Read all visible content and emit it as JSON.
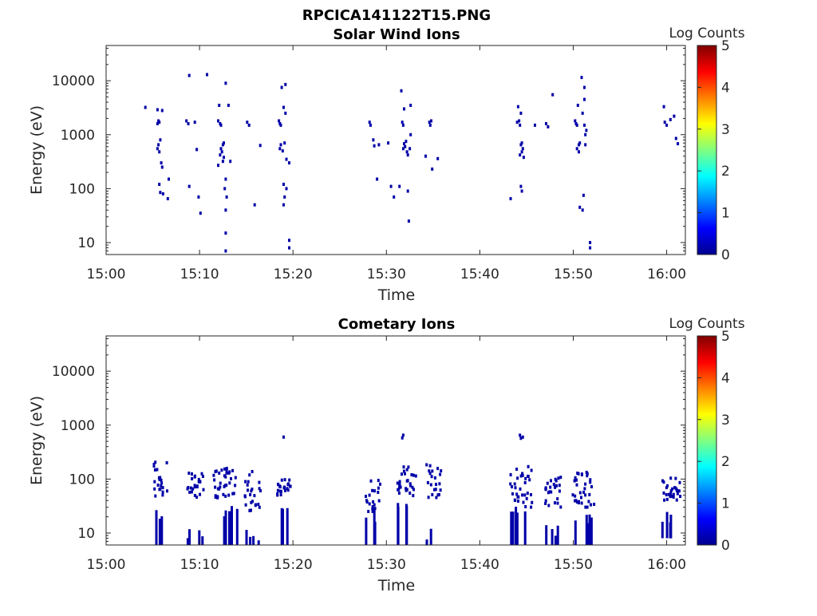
{
  "figure": {
    "title": "RPCICA141122T15.PNG"
  },
  "colorbar": {
    "label": "Log Counts",
    "ticks": [
      "0",
      "1",
      "2",
      "3",
      "4",
      "5"
    ],
    "range": [
      0,
      5
    ],
    "colormap": "jet"
  },
  "x_ticks": [
    "15:00",
    "15:10",
    "15:20",
    "15:30",
    "15:40",
    "15:50",
    "16:00"
  ],
  "y_ticks": [
    "10",
    "100",
    "1000",
    "10000"
  ],
  "chart_data": [
    {
      "type": "heatmap",
      "title": "Solar Wind Ions",
      "xlabel": "Time",
      "ylabel": "Energy (eV)",
      "xlim": [
        "15:00",
        "16:02"
      ],
      "ylim": [
        6,
        45000
      ],
      "yscale": "log",
      "colorbar_label": "Log Counts",
      "color_range": [
        0,
        5
      ],
      "grid": false,
      "points": [
        {
          "t": 5.7,
          "e": 1700
        },
        {
          "t": 5.5,
          "e": 1600
        },
        {
          "t": 5.6,
          "e": 1800
        },
        {
          "t": 5.6,
          "e": 650
        },
        {
          "t": 5.5,
          "e": 550
        },
        {
          "t": 5.7,
          "e": 480
        },
        {
          "t": 5.8,
          "e": 800
        },
        {
          "t": 6.0,
          "e": 2800
        },
        {
          "t": 5.5,
          "e": 2900
        },
        {
          "t": 5.9,
          "e": 300
        },
        {
          "t": 6.0,
          "e": 250
        },
        {
          "t": 5.8,
          "e": 85
        },
        {
          "t": 6.1,
          "e": 80
        },
        {
          "t": 5.7,
          "e": 120
        },
        {
          "t": 6.6,
          "e": 65
        },
        {
          "t": 6.7,
          "e": 150
        },
        {
          "t": 4.2,
          "e": 3200
        },
        {
          "t": 8.6,
          "e": 1800
        },
        {
          "t": 8.8,
          "e": 1600
        },
        {
          "t": 8.9,
          "e": 12500
        },
        {
          "t": 9.7,
          "e": 530
        },
        {
          "t": 9.5,
          "e": 1700
        },
        {
          "t": 8.9,
          "e": 110
        },
        {
          "t": 9.9,
          "e": 70
        },
        {
          "t": 10.1,
          "e": 35
        },
        {
          "t": 10.8,
          "e": 13000
        },
        {
          "t": 12.0,
          "e": 1800
        },
        {
          "t": 12.2,
          "e": 1600
        },
        {
          "t": 12.3,
          "e": 1500
        },
        {
          "t": 12.1,
          "e": 3500
        },
        {
          "t": 12.5,
          "e": 650
        },
        {
          "t": 12.3,
          "e": 550
        },
        {
          "t": 12.6,
          "e": 700
        },
        {
          "t": 12.4,
          "e": 480
        },
        {
          "t": 12.2,
          "e": 420
        },
        {
          "t": 12.6,
          "e": 380
        },
        {
          "t": 12.5,
          "e": 320
        },
        {
          "t": 12.8,
          "e": 9000
        },
        {
          "t": 13.1,
          "e": 3500
        },
        {
          "t": 12.8,
          "e": 150
        },
        {
          "t": 12.7,
          "e": 100
        },
        {
          "t": 12.9,
          "e": 70
        },
        {
          "t": 12.8,
          "e": 40
        },
        {
          "t": 12.8,
          "e": 15
        },
        {
          "t": 12.8,
          "e": 7
        },
        {
          "t": 13.3,
          "e": 320
        },
        {
          "t": 12.0,
          "e": 270
        },
        {
          "t": 15.1,
          "e": 1700
        },
        {
          "t": 15.3,
          "e": 1500
        },
        {
          "t": 15.9,
          "e": 50
        },
        {
          "t": 16.5,
          "e": 630
        },
        {
          "t": 18.5,
          "e": 1800
        },
        {
          "t": 18.7,
          "e": 1500
        },
        {
          "t": 18.6,
          "e": 1600
        },
        {
          "t": 18.7,
          "e": 650
        },
        {
          "t": 18.9,
          "e": 500
        },
        {
          "t": 18.6,
          "e": 550
        },
        {
          "t": 19.1,
          "e": 700
        },
        {
          "t": 19.3,
          "e": 350
        },
        {
          "t": 19.6,
          "e": 300
        },
        {
          "t": 19.2,
          "e": 8500
        },
        {
          "t": 18.8,
          "e": 7500
        },
        {
          "t": 19.0,
          "e": 3200
        },
        {
          "t": 19.2,
          "e": 2500
        },
        {
          "t": 19.0,
          "e": 120
        },
        {
          "t": 19.3,
          "e": 100
        },
        {
          "t": 19.1,
          "e": 70
        },
        {
          "t": 19.0,
          "e": 50
        },
        {
          "t": 19.6,
          "e": 11
        },
        {
          "t": 19.6,
          "e": 8
        },
        {
          "t": 28.2,
          "e": 1700
        },
        {
          "t": 28.3,
          "e": 1500
        },
        {
          "t": 28.6,
          "e": 800
        },
        {
          "t": 28.7,
          "e": 620
        },
        {
          "t": 29.0,
          "e": 150
        },
        {
          "t": 29.2,
          "e": 650
        },
        {
          "t": 30.2,
          "e": 700
        },
        {
          "t": 30.5,
          "e": 110
        },
        {
          "t": 30.8,
          "e": 70
        },
        {
          "t": 31.7,
          "e": 1700
        },
        {
          "t": 31.8,
          "e": 1500
        },
        {
          "t": 31.6,
          "e": 6500
        },
        {
          "t": 31.9,
          "e": 3000
        },
        {
          "t": 32.1,
          "e": 750
        },
        {
          "t": 32.0,
          "e": 600
        },
        {
          "t": 31.8,
          "e": 550
        },
        {
          "t": 32.2,
          "e": 480
        },
        {
          "t": 32.3,
          "e": 420
        },
        {
          "t": 31.9,
          "e": 680
        },
        {
          "t": 32.5,
          "e": 550
        },
        {
          "t": 32.6,
          "e": 1000
        },
        {
          "t": 32.3,
          "e": 90
        },
        {
          "t": 32.4,
          "e": 25
        },
        {
          "t": 31.4,
          "e": 110
        },
        {
          "t": 32.6,
          "e": 3500
        },
        {
          "t": 34.6,
          "e": 1700
        },
        {
          "t": 34.8,
          "e": 1800
        },
        {
          "t": 34.7,
          "e": 1500
        },
        {
          "t": 34.2,
          "e": 400
        },
        {
          "t": 34.9,
          "e": 230
        },
        {
          "t": 35.5,
          "e": 360
        },
        {
          "t": 44.0,
          "e": 1700
        },
        {
          "t": 44.2,
          "e": 1800
        },
        {
          "t": 44.3,
          "e": 1500
        },
        {
          "t": 44.1,
          "e": 3300
        },
        {
          "t": 44.4,
          "e": 2500
        },
        {
          "t": 44.4,
          "e": 650
        },
        {
          "t": 44.6,
          "e": 550
        },
        {
          "t": 44.5,
          "e": 480
        },
        {
          "t": 44.3,
          "e": 420
        },
        {
          "t": 44.7,
          "e": 380
        },
        {
          "t": 44.5,
          "e": 700
        },
        {
          "t": 44.4,
          "e": 110
        },
        {
          "t": 44.5,
          "e": 90
        },
        {
          "t": 43.3,
          "e": 65
        },
        {
          "t": 45.9,
          "e": 1500
        },
        {
          "t": 47.1,
          "e": 1600
        },
        {
          "t": 47.3,
          "e": 1400
        },
        {
          "t": 47.8,
          "e": 5500
        },
        {
          "t": 50.2,
          "e": 1800
        },
        {
          "t": 50.4,
          "e": 1500
        },
        {
          "t": 50.3,
          "e": 1600
        },
        {
          "t": 50.6,
          "e": 650
        },
        {
          "t": 50.4,
          "e": 550
        },
        {
          "t": 50.6,
          "e": 480
        },
        {
          "t": 50.7,
          "e": 700
        },
        {
          "t": 50.9,
          "e": 11500
        },
        {
          "t": 51.2,
          "e": 7500
        },
        {
          "t": 51.2,
          "e": 4500
        },
        {
          "t": 50.5,
          "e": 3500
        },
        {
          "t": 51.0,
          "e": 2500
        },
        {
          "t": 51.2,
          "e": 1500
        },
        {
          "t": 51.4,
          "e": 1200
        },
        {
          "t": 51.3,
          "e": 1000
        },
        {
          "t": 51.3,
          "e": 650
        },
        {
          "t": 51.1,
          "e": 75
        },
        {
          "t": 50.7,
          "e": 45
        },
        {
          "t": 51.0,
          "e": 40
        },
        {
          "t": 51.8,
          "e": 8
        },
        {
          "t": 51.8,
          "e": 10
        },
        {
          "t": 59.8,
          "e": 1700
        },
        {
          "t": 60.0,
          "e": 1500
        },
        {
          "t": 59.7,
          "e": 3300
        },
        {
          "t": 60.4,
          "e": 1900
        },
        {
          "t": 60.8,
          "e": 2200
        },
        {
          "t": 61.0,
          "e": 850
        },
        {
          "t": 61.2,
          "e": 680
        }
      ]
    },
    {
      "type": "heatmap",
      "title": "Cometary Ions",
      "xlabel": "Time",
      "ylabel": "Energy (eV)",
      "xlim": [
        "15:00",
        "16:02"
      ],
      "ylim": [
        6,
        45000
      ],
      "yscale": "log",
      "colorbar_label": "Log Counts",
      "color_range": [
        0,
        5
      ],
      "grid": false,
      "groups": [
        {
          "t": 5.0,
          "width": 1.6,
          "hi": 210,
          "lo": 45,
          "stem_hi": 28,
          "stem_lo": 6
        },
        {
          "t": 8.7,
          "width": 1.8,
          "hi": 130,
          "lo": 45,
          "stem_hi": 13,
          "stem_lo": 6
        },
        {
          "t": 11.5,
          "width": 2.6,
          "hi": 160,
          "lo": 45,
          "stem_hi": 35,
          "stem_lo": 6
        },
        {
          "t": 14.8,
          "width": 1.8,
          "hi": 140,
          "lo": 25,
          "stem_hi": 13,
          "stem_lo": 6
        },
        {
          "t": 18.2,
          "width": 1.6,
          "hi": 100,
          "lo": 45,
          "stem_hi": 30,
          "stem_lo": 6
        },
        {
          "t": 27.8,
          "width": 1.6,
          "hi": 95,
          "lo": 25,
          "stem_hi": 28,
          "stem_lo": 6
        },
        {
          "t": 31.2,
          "width": 2.2,
          "hi": 180,
          "lo": 45,
          "stem_hi": 40,
          "stem_lo": 6
        },
        {
          "t": 34.3,
          "width": 1.6,
          "hi": 190,
          "lo": 45,
          "stem_hi": 12,
          "stem_lo": 6
        },
        {
          "t": 43.2,
          "width": 2.4,
          "hi": 175,
          "lo": 30,
          "stem_hi": 40,
          "stem_lo": 6
        },
        {
          "t": 46.9,
          "width": 1.8,
          "hi": 110,
          "lo": 30,
          "stem_hi": 15,
          "stem_lo": 6
        },
        {
          "t": 49.9,
          "width": 2.4,
          "hi": 140,
          "lo": 30,
          "stem_hi": 25,
          "stem_lo": 6
        },
        {
          "t": 59.5,
          "width": 2.0,
          "hi": 110,
          "lo": 40,
          "stem_hi": 25,
          "stem_lo": 8
        }
      ],
      "isolated": [
        {
          "t": 19.0,
          "e": 600
        },
        {
          "t": 31.8,
          "e": 650
        },
        {
          "t": 31.7,
          "e": 580
        },
        {
          "t": 44.3,
          "e": 650
        },
        {
          "t": 44.6,
          "e": 600
        },
        {
          "t": 44.4,
          "e": 570
        }
      ]
    }
  ]
}
